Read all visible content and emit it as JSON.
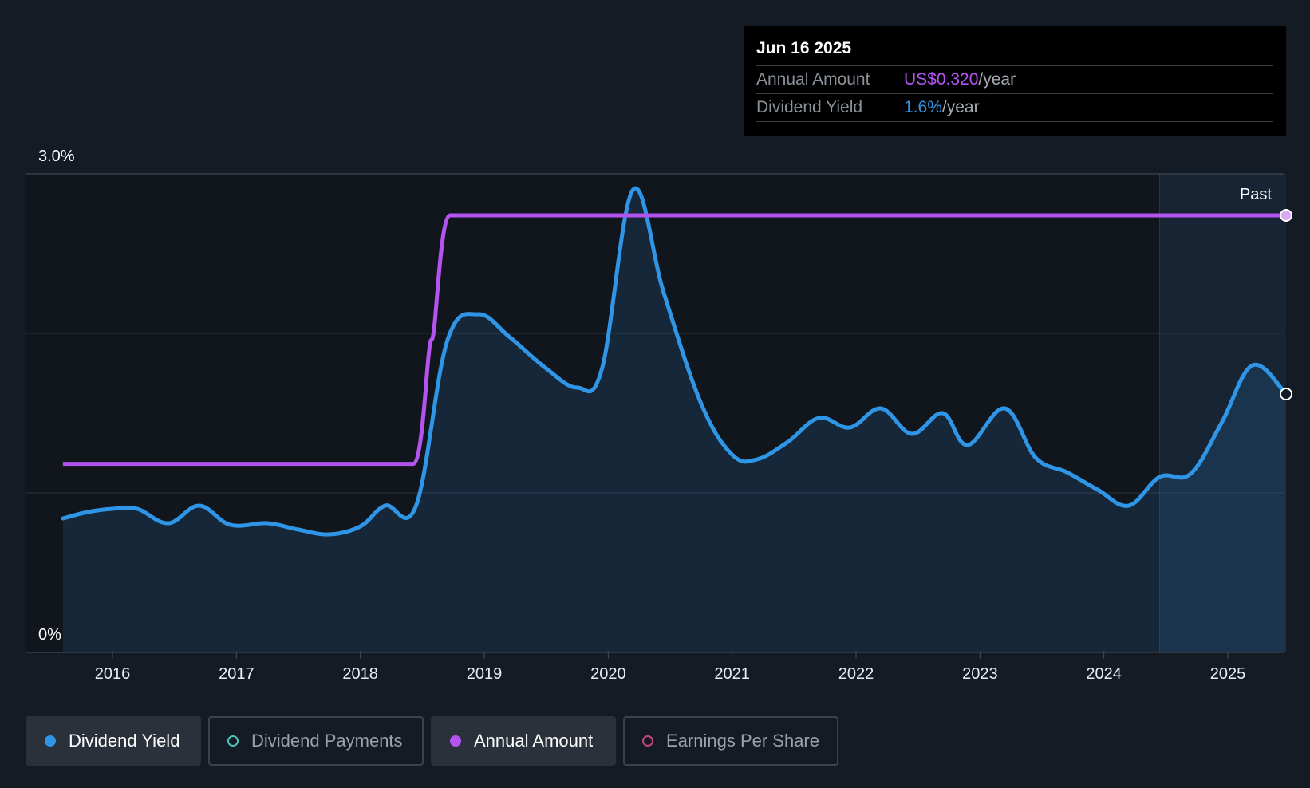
{
  "tooltip": {
    "date": "Jun 16 2025",
    "rows": [
      {
        "label": "Annual Amount",
        "value": "US$0.320",
        "unit": "/year"
      },
      {
        "label": "Dividend Yield",
        "value": "1.6%",
        "unit": "/year"
      }
    ]
  },
  "legend": [
    {
      "label": "Dividend Yield",
      "color": "#2f95e6",
      "active": true,
      "filled": true
    },
    {
      "label": "Dividend Payments",
      "color": "#4fc1b8",
      "active": false,
      "filled": false
    },
    {
      "label": "Annual Amount",
      "color": "#b454f0",
      "active": true,
      "filled": true
    },
    {
      "label": "Earnings Per Share",
      "color": "#c2457e",
      "active": false,
      "filled": false
    }
  ],
  "chart_data": {
    "type": "line",
    "y_ticks": [
      "3.0%",
      "0%"
    ],
    "ylim": [
      0,
      3.0
    ],
    "xlim": [
      2015.6,
      2025.47
    ],
    "x_ticks": [
      "2016",
      "2017",
      "2018",
      "2019",
      "2020",
      "2021",
      "2022",
      "2023",
      "2024",
      "2025"
    ],
    "past_label": "Past",
    "past_region_start": 2024.45,
    "grid": true,
    "colors": {
      "yield": "#2f95e6",
      "amount": "#b454f0"
    },
    "series": [
      {
        "name": "Dividend Yield",
        "unit": "%",
        "points": [
          [
            2015.6,
            0.84
          ],
          [
            2015.8,
            0.88
          ],
          [
            2016.0,
            0.9
          ],
          [
            2016.2,
            0.9
          ],
          [
            2016.45,
            0.81
          ],
          [
            2016.7,
            0.92
          ],
          [
            2016.95,
            0.8
          ],
          [
            2017.25,
            0.81
          ],
          [
            2017.5,
            0.77
          ],
          [
            2017.75,
            0.74
          ],
          [
            2018.0,
            0.79
          ],
          [
            2018.2,
            0.92
          ],
          [
            2018.45,
            0.92
          ],
          [
            2018.7,
            1.95
          ],
          [
            2018.95,
            2.12
          ],
          [
            2019.2,
            1.98
          ],
          [
            2019.5,
            1.78
          ],
          [
            2019.75,
            1.66
          ],
          [
            2019.95,
            1.78
          ],
          [
            2020.2,
            2.9
          ],
          [
            2020.45,
            2.25
          ],
          [
            2020.75,
            1.56
          ],
          [
            2021.0,
            1.24
          ],
          [
            2021.2,
            1.21
          ],
          [
            2021.45,
            1.32
          ],
          [
            2021.7,
            1.47
          ],
          [
            2021.95,
            1.41
          ],
          [
            2022.2,
            1.53
          ],
          [
            2022.45,
            1.37
          ],
          [
            2022.7,
            1.5
          ],
          [
            2022.9,
            1.3
          ],
          [
            2023.2,
            1.53
          ],
          [
            2023.45,
            1.22
          ],
          [
            2023.7,
            1.13
          ],
          [
            2023.95,
            1.02
          ],
          [
            2024.2,
            0.92
          ],
          [
            2024.45,
            1.1
          ],
          [
            2024.7,
            1.12
          ],
          [
            2024.95,
            1.44
          ],
          [
            2025.2,
            1.8
          ],
          [
            2025.47,
            1.62
          ]
        ]
      },
      {
        "name": "Annual Amount",
        "unit": "US$",
        "points": [
          [
            2015.6,
            0.138
          ],
          [
            2018.45,
            0.138
          ],
          [
            2018.7,
            0.32
          ],
          [
            2025.47,
            0.32
          ]
        ]
      }
    ]
  }
}
